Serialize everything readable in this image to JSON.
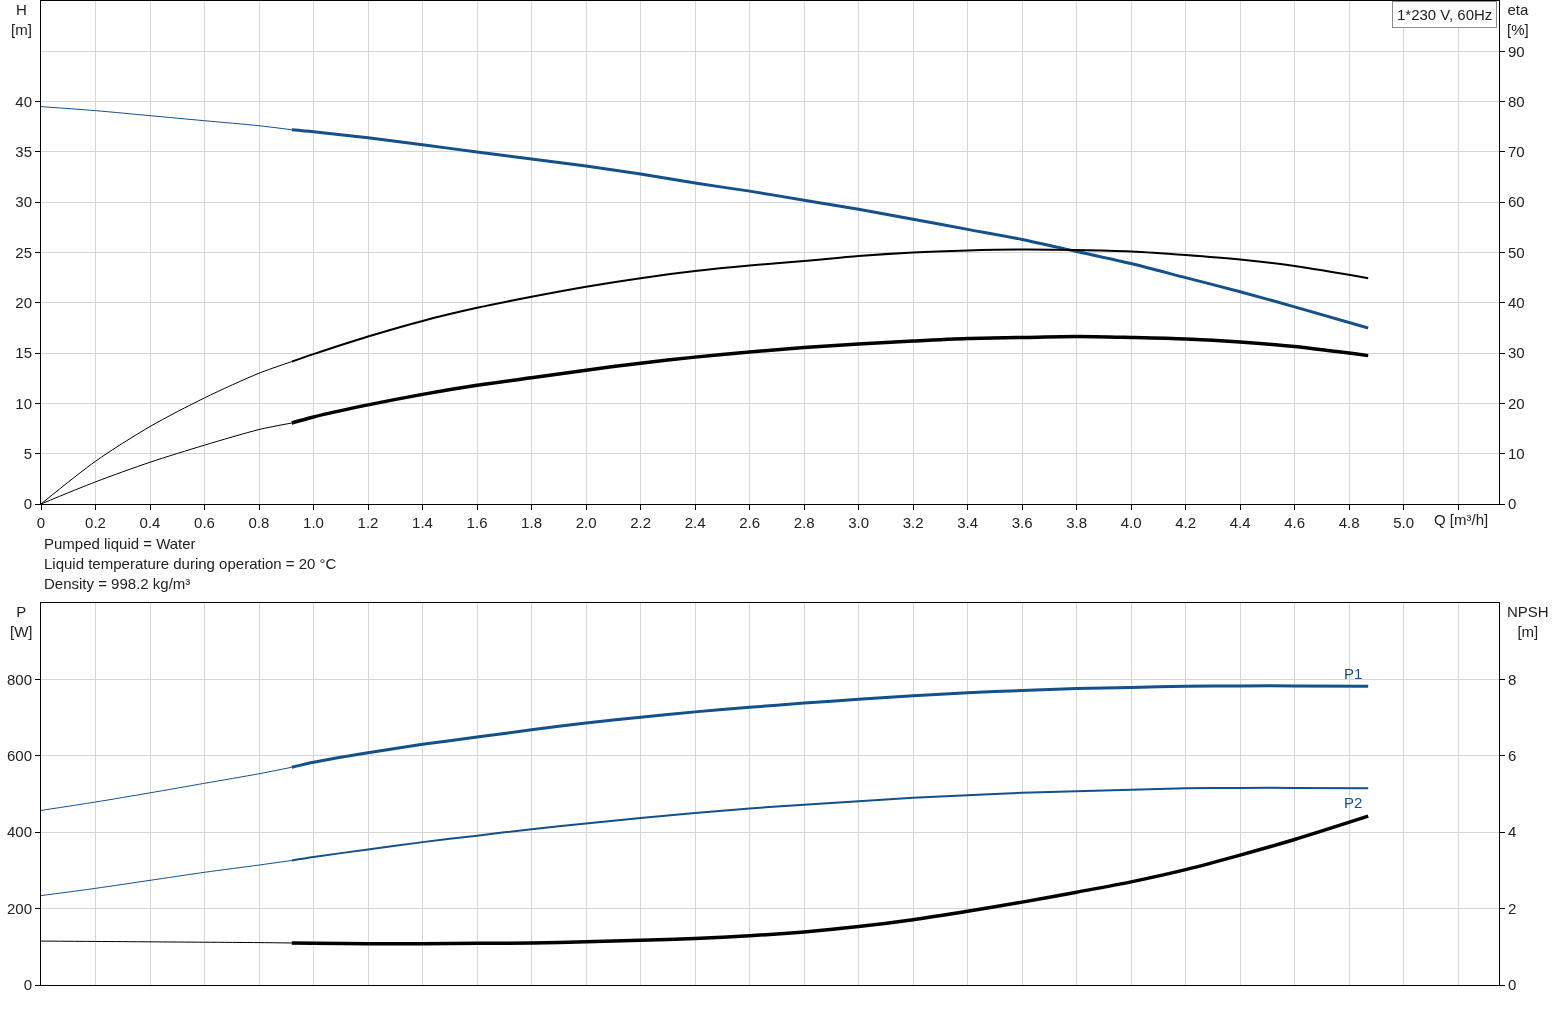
{
  "chart_data": [
    {
      "type": "line",
      "title": "1*230 V, 60Hz",
      "xlabel": "Q [m³/h]",
      "ylabel": "H\n[m]",
      "y2label": "eta\n[%]",
      "annotations": [
        "Pumped liquid = Water",
        "Liquid temperature during operation = 20 °C",
        "Density = 998.2 kg/m³"
      ],
      "xlim": [
        0,
        5.35
      ],
      "xticks": [
        0,
        0.2,
        0.4,
        0.6,
        0.8,
        {
          "value": 1,
          "label": "1.0"
        },
        1.2,
        1.4,
        1.6,
        1.8,
        {
          "value": 2,
          "label": "2.0"
        },
        2.2,
        2.4,
        2.6,
        2.8,
        {
          "value": 3,
          "label": "3.0"
        },
        3.2,
        3.4,
        3.6,
        3.8,
        {
          "value": 4,
          "label": "4.0"
        },
        4.2,
        4.4,
        4.6,
        4.8,
        {
          "value": 5,
          "label": "5.0"
        },
        {
          "value": 5.2,
          "label": null
        }
      ],
      "ylim": [
        0,
        50
      ],
      "yticks": [
        0,
        5,
        10,
        15,
        20,
        25,
        30,
        35,
        40
      ],
      "y2lim": [
        0,
        100
      ],
      "y2ticks": [
        0,
        10,
        20,
        30,
        40,
        50,
        60,
        70,
        80,
        90
      ],
      "grid": true,
      "series": [
        {
          "color": "#14508a",
          "x": [
            0,
            0.2,
            0.4,
            0.6,
            0.8,
            0.92
          ],
          "values": [
            39.5,
            39.1,
            38.6,
            38.1,
            37.6,
            37.2
          ]
        },
        {
          "color": "#14508a",
          "x": [
            0.92,
            1,
            1.2,
            1.4,
            1.6,
            1.8,
            2,
            2.2,
            2.4,
            2.6,
            2.8,
            3,
            3.2,
            3.4,
            3.6,
            3.8,
            4,
            4.2,
            4.4,
            4.6,
            4.87
          ],
          "values": [
            37.2,
            37.0,
            36.4,
            35.7,
            35.0,
            34.3,
            33.6,
            32.8,
            31.9,
            31.1,
            30.2,
            29.3,
            28.3,
            27.3,
            26.3,
            25.1,
            23.9,
            22.5,
            21.1,
            19.6,
            17.5
          ]
        },
        {
          "color": "#000000",
          "axis": "y2",
          "x": [
            0,
            0.2,
            0.4,
            0.6,
            0.8,
            0.92
          ],
          "values": [
            0,
            8.5,
            15.4,
            21.1,
            26.0,
            28.3
          ]
        },
        {
          "color": "#000000",
          "axis": "y2",
          "x": [
            0.92,
            1,
            1.2,
            1.4,
            1.6,
            1.8,
            2,
            2.2,
            2.4,
            2.6,
            2.8,
            3,
            3.2,
            3.4,
            3.6,
            3.8,
            4,
            4.2,
            4.4,
            4.6,
            4.87
          ],
          "values": [
            28.3,
            29.8,
            33.3,
            36.4,
            39.0,
            41.2,
            43.2,
            44.9,
            46.3,
            47.4,
            48.3,
            49.3,
            50.0,
            50.4,
            50.6,
            50.5,
            50.2,
            49.5,
            48.6,
            47.3,
            44.9
          ]
        },
        {
          "color": "#000000",
          "axis": "y2",
          "x": [
            0,
            0.2,
            0.4,
            0.6,
            0.8,
            0.92
          ],
          "values": [
            0,
            4.4,
            8.3,
            11.7,
            14.8,
            16.1
          ]
        },
        {
          "color": "#000000",
          "axis": "y2",
          "x": [
            0.92,
            1,
            1.2,
            1.4,
            1.6,
            1.8,
            2,
            2.2,
            2.4,
            2.6,
            2.8,
            3,
            3.2,
            3.4,
            3.6,
            3.8,
            4,
            4.2,
            4.4,
            4.6,
            4.87
          ],
          "values": [
            16.1,
            17.3,
            19.7,
            21.8,
            23.6,
            25.1,
            26.6,
            28.0,
            29.2,
            30.2,
            31.1,
            31.8,
            32.4,
            32.9,
            33.1,
            33.3,
            33.1,
            32.8,
            32.2,
            31.3,
            29.5
          ]
        }
      ]
    },
    {
      "type": "line",
      "ylabel": "P\n[W]",
      "y2label": "NPSH\n[m]",
      "tick_labels": "y",
      "xlim": [
        0,
        5.35
      ],
      "xticks": [
        0,
        0.2,
        0.4,
        0.6,
        0.8,
        1,
        1.2,
        1.4,
        1.6,
        1.8,
        2,
        2.2,
        2.4,
        2.6,
        2.8,
        3,
        3.2,
        3.4,
        3.6,
        3.8,
        4,
        4.2,
        4.4,
        4.6,
        4.8,
        5,
        5.2
      ],
      "ylim": [
        0,
        1000
      ],
      "yticks": [
        0,
        200,
        400,
        600,
        800
      ],
      "y2lim": [
        0,
        10
      ],
      "y2ticks": [
        0,
        2,
        4,
        6,
        8
      ],
      "grid": true,
      "series": [
        {
          "color": "#14508a",
          "x": [
            0,
            0.2,
            0.4,
            0.6,
            0.8,
            0.92
          ],
          "values": [
            457,
            479,
            503,
            528,
            553,
            570
          ]
        },
        {
          "name": "P1",
          "color": "#14508a",
          "x": [
            0.92,
            1,
            1.2,
            1.4,
            1.6,
            1.8,
            2,
            2.2,
            2.4,
            2.6,
            2.8,
            3,
            3.2,
            3.4,
            3.6,
            3.8,
            4,
            4.2,
            4.4,
            4.6,
            4.87
          ],
          "values": [
            570,
            583,
            608,
            630,
            649,
            668,
            686,
            701,
            715,
            727,
            738,
            748,
            757,
            765,
            771,
            776,
            779,
            782,
            783,
            783,
            782
          ]
        },
        {
          "color": "#14508a",
          "x": [
            0,
            0.2,
            0.4,
            0.6,
            0.8,
            0.92
          ],
          "values": [
            234,
            253,
            274,
            295,
            314,
            326
          ]
        },
        {
          "name": "P2",
          "color": "#14508a",
          "x": [
            0.92,
            1,
            1.2,
            1.4,
            1.6,
            1.8,
            2,
            2.2,
            2.4,
            2.6,
            2.8,
            3,
            3.2,
            3.4,
            3.6,
            3.8,
            4,
            4.2,
            4.4,
            4.6,
            4.87
          ],
          "values": [
            326,
            335,
            355,
            374,
            391,
            408,
            423,
            437,
            450,
            462,
            472,
            481,
            490,
            497,
            503,
            507,
            511,
            515,
            516,
            516,
            515
          ]
        },
        {
          "color": "#000000",
          "axis": "y2",
          "x": [
            0,
            0.2,
            0.4,
            0.6,
            0.8,
            0.92
          ],
          "values": [
            1.15,
            1.14,
            1.13,
            1.12,
            1.11,
            1.1
          ]
        },
        {
          "color": "#000000",
          "axis": "y2",
          "x": [
            0.92,
            1,
            1.2,
            1.4,
            1.6,
            1.8,
            2,
            2.2,
            2.4,
            2.6,
            2.8,
            3,
            3.2,
            3.4,
            3.6,
            3.8,
            4,
            4.2,
            4.4,
            4.6,
            4.87
          ],
          "values": [
            1.1,
            1.09,
            1.08,
            1.08,
            1.09,
            1.1,
            1.13,
            1.17,
            1.22,
            1.29,
            1.39,
            1.53,
            1.71,
            1.93,
            2.17,
            2.43,
            2.7,
            3.02,
            3.4,
            3.81,
            4.42
          ]
        }
      ]
    }
  ]
}
